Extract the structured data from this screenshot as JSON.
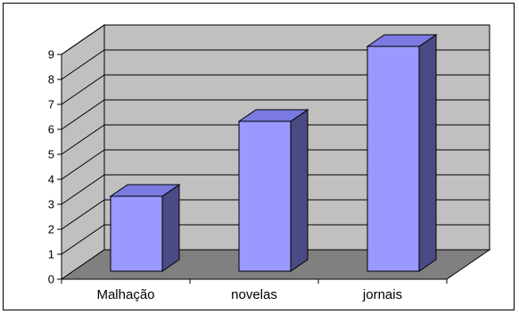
{
  "chart_data": {
    "type": "bar",
    "style": "3d-column",
    "categories": [
      "Malhação",
      "novelas",
      "jornais"
    ],
    "values": [
      3,
      6,
      9
    ],
    "ylim": [
      0,
      9
    ],
    "yticks": [
      0,
      1,
      2,
      3,
      4,
      5,
      6,
      7,
      8,
      9
    ],
    "grid": true,
    "legend": "none",
    "title": "",
    "xlabel": "",
    "ylabel": ""
  },
  "colors": {
    "bar_front": "#9999ff",
    "bar_top": "#7a7ae0",
    "bar_side": "#4a4a85",
    "back_wall": "#c0c0c0",
    "floor": "#808080",
    "grid": "#000000"
  }
}
